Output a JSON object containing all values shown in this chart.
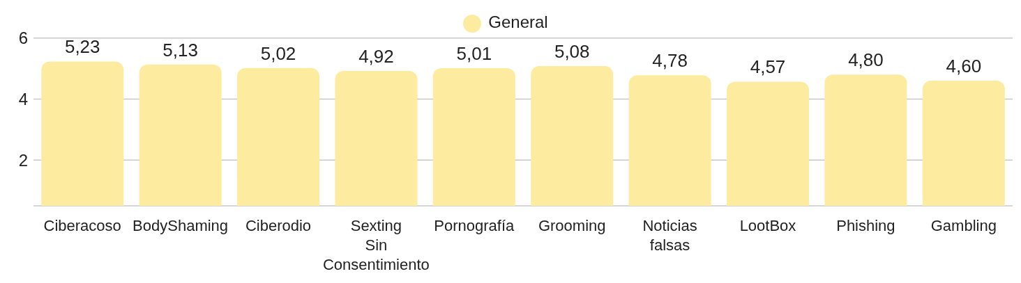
{
  "chart_data": {
    "type": "bar",
    "categories": [
      "Ciberacoso",
      "BodyShaming",
      "Ciberodio",
      "Sexting Sin Consentimiento",
      "Pornografía",
      "Grooming",
      "Noticias falsas",
      "LootBox",
      "Phishing",
      "Gambling"
    ],
    "series": [
      {
        "name": "General",
        "color": "#fdeca0",
        "values": [
          5.23,
          5.13,
          5.02,
          4.92,
          5.01,
          5.08,
          4.78,
          4.57,
          4.8,
          4.6
        ],
        "value_labels": [
          "5,23",
          "5,13",
          "5,02",
          "4,92",
          "5,01",
          "5,08",
          "4,78",
          "4,57",
          "4,80",
          "4,60"
        ]
      }
    ],
    "ylim": [
      0.5,
      6
    ],
    "yticks": [
      2,
      4,
      6
    ],
    "grid": "y",
    "legend": "top"
  }
}
